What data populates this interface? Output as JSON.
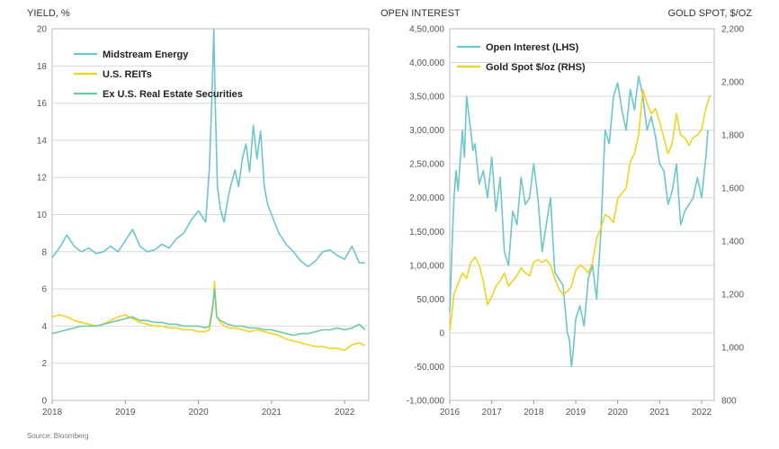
{
  "source": "Source: Bloomberg",
  "chart_data": [
    {
      "type": "line",
      "ylabel": "YIELD, %",
      "ylim": [
        0,
        20
      ],
      "yticks": [
        "0",
        "2",
        "4",
        "6",
        "8",
        "10",
        "12",
        "14",
        "16",
        "18",
        "20"
      ],
      "xlim": [
        2018,
        2022.33
      ],
      "xticks": [
        "2018",
        "2019",
        "2020",
        "2021",
        "2022"
      ],
      "grid": true,
      "legend": "top-left",
      "series": [
        {
          "name": "Midstream Energy",
          "color": "#6cc7cc",
          "x": [
            2018.0,
            2018.1,
            2018.2,
            2018.3,
            2018.4,
            2018.5,
            2018.6,
            2018.7,
            2018.8,
            2018.9,
            2019.0,
            2019.1,
            2019.2,
            2019.3,
            2019.4,
            2019.5,
            2019.6,
            2019.7,
            2019.8,
            2019.9,
            2020.0,
            2020.1,
            2020.15,
            2020.19,
            2020.21,
            2020.23,
            2020.26,
            2020.3,
            2020.35,
            2020.42,
            2020.5,
            2020.55,
            2020.6,
            2020.65,
            2020.7,
            2020.75,
            2020.8,
            2020.85,
            2020.9,
            2020.95,
            2021.0,
            2021.1,
            2021.2,
            2021.3,
            2021.4,
            2021.5,
            2021.6,
            2021.7,
            2021.8,
            2021.9,
            2022.0,
            2022.1,
            2022.2,
            2022.28
          ],
          "values": [
            7.7,
            8.2,
            8.9,
            8.3,
            8.0,
            8.2,
            7.9,
            8.0,
            8.3,
            8.0,
            8.6,
            9.2,
            8.3,
            8.0,
            8.1,
            8.4,
            8.2,
            8.7,
            9.0,
            9.7,
            10.2,
            9.6,
            12.5,
            17.0,
            20.0,
            16.0,
            11.5,
            10.3,
            9.6,
            11.2,
            12.4,
            11.5,
            13.0,
            13.8,
            12.3,
            14.8,
            13.0,
            14.5,
            11.5,
            10.5,
            10.0,
            9.0,
            8.4,
            8.0,
            7.5,
            7.2,
            7.5,
            8.0,
            8.1,
            7.8,
            7.6,
            8.3,
            7.4,
            7.4
          ]
        },
        {
          "name": "U.S. REITs",
          "color": "#f2d41f",
          "x": [
            2018.0,
            2018.1,
            2018.2,
            2018.3,
            2018.4,
            2018.5,
            2018.6,
            2018.7,
            2018.8,
            2018.9,
            2019.0,
            2019.1,
            2019.2,
            2019.3,
            2019.4,
            2019.5,
            2019.6,
            2019.7,
            2019.8,
            2019.9,
            2020.0,
            2020.1,
            2020.15,
            2020.2,
            2020.22,
            2020.25,
            2020.3,
            2020.4,
            2020.5,
            2020.6,
            2020.7,
            2020.8,
            2020.9,
            2021.0,
            2021.1,
            2021.2,
            2021.3,
            2021.4,
            2021.5,
            2021.6,
            2021.7,
            2021.8,
            2021.9,
            2022.0,
            2022.1,
            2022.2,
            2022.28
          ],
          "values": [
            4.5,
            4.6,
            4.5,
            4.3,
            4.2,
            4.1,
            4.0,
            4.1,
            4.3,
            4.5,
            4.6,
            4.4,
            4.2,
            4.1,
            4.0,
            4.0,
            3.9,
            3.9,
            3.8,
            3.8,
            3.7,
            3.7,
            3.8,
            5.0,
            6.4,
            4.5,
            4.2,
            3.9,
            3.9,
            3.8,
            3.7,
            3.8,
            3.7,
            3.6,
            3.5,
            3.3,
            3.2,
            3.1,
            3.0,
            2.9,
            2.9,
            2.8,
            2.8,
            2.7,
            3.0,
            3.1,
            2.95
          ]
        },
        {
          "name": "Ex U.S. Real Estate Securities",
          "color": "#6fcba0",
          "x": [
            2018.0,
            2018.1,
            2018.2,
            2018.3,
            2018.4,
            2018.5,
            2018.6,
            2018.7,
            2018.8,
            2018.9,
            2019.0,
            2019.1,
            2019.2,
            2019.3,
            2019.4,
            2019.5,
            2019.6,
            2019.7,
            2019.8,
            2019.9,
            2020.0,
            2020.1,
            2020.15,
            2020.2,
            2020.22,
            2020.25,
            2020.3,
            2020.4,
            2020.5,
            2020.6,
            2020.7,
            2020.8,
            2020.9,
            2021.0,
            2021.1,
            2021.2,
            2021.3,
            2021.4,
            2021.5,
            2021.6,
            2021.7,
            2021.8,
            2021.9,
            2022.0,
            2022.1,
            2022.2,
            2022.28
          ],
          "values": [
            3.6,
            3.7,
            3.8,
            3.9,
            4.0,
            4.0,
            4.0,
            4.1,
            4.2,
            4.3,
            4.4,
            4.5,
            4.3,
            4.3,
            4.2,
            4.2,
            4.1,
            4.1,
            4.0,
            4.0,
            4.0,
            3.9,
            4.0,
            5.2,
            6.0,
            4.5,
            4.3,
            4.1,
            4.0,
            4.0,
            3.9,
            3.9,
            3.8,
            3.8,
            3.7,
            3.6,
            3.5,
            3.6,
            3.6,
            3.7,
            3.8,
            3.8,
            3.9,
            3.8,
            3.9,
            4.1,
            3.8
          ]
        }
      ]
    },
    {
      "type": "line",
      "ylabel": "OPEN INTEREST",
      "y2label": "GOLD SPOT, $/OZ",
      "ylim": [
        -100000,
        450000
      ],
      "yticks": [
        "-1,00,000",
        "-50,000",
        "0",
        "50,000",
        "1,00,000",
        "1,50,000",
        "2,00,000",
        "2,50,000",
        "3,00,000",
        "3,50,000",
        "4,00,000",
        "4,50,000"
      ],
      "y2lim": [
        800,
        2200
      ],
      "y2ticks": [
        "800",
        "1,000",
        "1,200",
        "1,400",
        "1,600",
        "1,800",
        "2,000",
        "2,200"
      ],
      "xlim": [
        2016,
        2022.3
      ],
      "xticks": [
        "2016",
        "2017",
        "2018",
        "2019",
        "2020",
        "2021",
        "2022"
      ],
      "grid": true,
      "legend": "top-left",
      "series": [
        {
          "name": "Open Interest (LHS)",
          "color": "#6cc7cc",
          "axis": "left",
          "x": [
            2016.0,
            2016.05,
            2016.1,
            2016.15,
            2016.2,
            2016.3,
            2016.35,
            2016.4,
            2016.5,
            2016.55,
            2016.6,
            2016.7,
            2016.8,
            2016.9,
            2017.0,
            2017.1,
            2017.2,
            2017.3,
            2017.4,
            2017.5,
            2017.6,
            2017.7,
            2017.8,
            2017.9,
            2018.0,
            2018.1,
            2018.2,
            2018.3,
            2018.4,
            2018.5,
            2018.6,
            2018.7,
            2018.8,
            2018.85,
            2018.9,
            2018.95,
            2019.0,
            2019.1,
            2019.2,
            2019.3,
            2019.4,
            2019.5,
            2019.6,
            2019.7,
            2019.8,
            2019.9,
            2020.0,
            2020.1,
            2020.2,
            2020.3,
            2020.4,
            2020.5,
            2020.6,
            2020.7,
            2020.8,
            2020.9,
            2021.0,
            2021.1,
            2021.2,
            2021.3,
            2021.4,
            2021.5,
            2021.6,
            2021.7,
            2021.8,
            2021.9,
            2022.0,
            2022.1,
            2022.15
          ],
          "values": [
            30000,
            120000,
            200000,
            240000,
            210000,
            300000,
            260000,
            350000,
            300000,
            270000,
            280000,
            220000,
            240000,
            200000,
            260000,
            180000,
            230000,
            120000,
            100000,
            180000,
            160000,
            230000,
            190000,
            200000,
            250000,
            200000,
            120000,
            160000,
            200000,
            90000,
            80000,
            70000,
            0,
            -10000,
            -50000,
            -20000,
            20000,
            40000,
            10000,
            80000,
            100000,
            50000,
            150000,
            300000,
            280000,
            350000,
            370000,
            330000,
            300000,
            360000,
            330000,
            380000,
            350000,
            300000,
            320000,
            290000,
            250000,
            240000,
            190000,
            210000,
            250000,
            160000,
            180000,
            190000,
            200000,
            230000,
            200000,
            260000,
            300000
          ]
        },
        {
          "name": "Gold Spot $/oz (RHS)",
          "color": "#f2d41f",
          "axis": "right",
          "x": [
            2016.0,
            2016.1,
            2016.2,
            2016.3,
            2016.4,
            2016.5,
            2016.6,
            2016.7,
            2016.8,
            2016.9,
            2017.0,
            2017.1,
            2017.2,
            2017.3,
            2017.4,
            2017.5,
            2017.6,
            2017.7,
            2017.8,
            2017.9,
            2018.0,
            2018.1,
            2018.2,
            2018.3,
            2018.4,
            2018.5,
            2018.6,
            2018.7,
            2018.8,
            2018.9,
            2019.0,
            2019.1,
            2019.2,
            2019.3,
            2019.4,
            2019.5,
            2019.6,
            2019.7,
            2019.8,
            2019.9,
            2020.0,
            2020.1,
            2020.2,
            2020.3,
            2020.4,
            2020.5,
            2020.6,
            2020.7,
            2020.8,
            2020.9,
            2021.0,
            2021.1,
            2021.2,
            2021.3,
            2021.4,
            2021.5,
            2021.6,
            2021.7,
            2021.8,
            2021.9,
            2022.0,
            2022.1,
            2022.2
          ],
          "values": [
            1060,
            1200,
            1240,
            1280,
            1260,
            1320,
            1340,
            1310,
            1250,
            1160,
            1190,
            1230,
            1250,
            1280,
            1230,
            1250,
            1270,
            1300,
            1280,
            1270,
            1320,
            1330,
            1320,
            1330,
            1310,
            1260,
            1220,
            1200,
            1210,
            1230,
            1290,
            1310,
            1300,
            1280,
            1320,
            1410,
            1450,
            1500,
            1490,
            1470,
            1560,
            1580,
            1600,
            1700,
            1730,
            1800,
            1970,
            1920,
            1880,
            1900,
            1850,
            1790,
            1730,
            1770,
            1880,
            1800,
            1790,
            1760,
            1790,
            1800,
            1820,
            1900,
            1950
          ]
        }
      ]
    }
  ]
}
